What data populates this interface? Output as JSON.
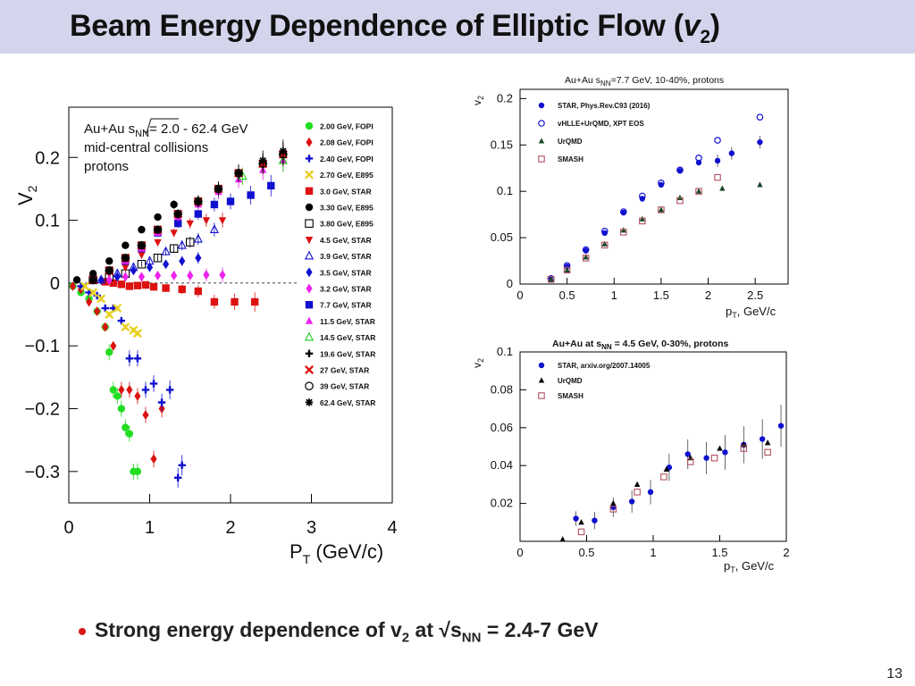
{
  "slide": {
    "title_main": "Beam Energy Dependence of Elliptic Flow",
    "title_sym": "v",
    "title_sub": "2",
    "bullet_pre": "Strong energy dependence of v",
    "bullet_sub1": "2",
    "bullet_mid": " at √s",
    "bullet_sub2": "NN",
    "bullet_post": " = 2.4-7 GeV",
    "page_number": "13"
  },
  "colors": {
    "title_band": "#d4d4ec",
    "bullet": "#d61818",
    "star_blue": "#1010d0",
    "green": "#22dd22",
    "red": "#dd1111"
  },
  "chart_data": [
    {
      "id": "left",
      "type": "scatter",
      "title": "",
      "annotation_lines": [
        "Au+Au √sNN = 2.0 - 62.4 GeV",
        "mid-central collisions",
        "protons"
      ],
      "annotation_1a": "Au+Au ",
      "annotation_1b": "s",
      "annotation_1c": "NN",
      "annotation_1d": "= 2.0 - 62.4 GeV",
      "annotation_2": "mid-central collisions",
      "annotation_3": "protons",
      "xlabel_main": "P",
      "xlabel_sub": "T",
      "xlabel_unit": " (GeV/c)",
      "ylabel_main": "V",
      "ylabel_sub": "2",
      "xlim": [
        0,
        4
      ],
      "ylim": [
        -0.35,
        0.28
      ],
      "xticks": [
        0,
        1,
        2,
        3,
        4
      ],
      "xtick_labels": [
        "0",
        "1",
        "2",
        "3",
        "4"
      ],
      "yticks": [
        0.2,
        0.1,
        0,
        -0.1,
        -0.2,
        -0.3
      ],
      "ytick_labels": [
        "0.2",
        "0.1",
        "0",
        "−0.1",
        "−0.2",
        "−0.3"
      ],
      "legend_position": "right",
      "series": [
        {
          "name": "2.00 GeV, FOPI",
          "color": "#22dd22",
          "marker": "circle",
          "x": [
            0.05,
            0.15,
            0.25,
            0.35,
            0.45,
            0.5,
            0.55,
            0.6,
            0.65,
            0.7,
            0.75,
            0.8,
            0.85
          ],
          "y": [
            -0.005,
            -0.015,
            -0.025,
            -0.045,
            -0.07,
            -0.11,
            -0.17,
            -0.18,
            -0.2,
            -0.23,
            -0.24,
            -0.3,
            -0.3
          ]
        },
        {
          "name": "2.08 GeV, FOPI",
          "color": "#dd1111",
          "marker": "diamond",
          "x": [
            0.05,
            0.15,
            0.25,
            0.35,
            0.45,
            0.55,
            0.65,
            0.75,
            0.85,
            0.95,
            1.05,
            1.15
          ],
          "y": [
            -0.005,
            -0.01,
            -0.03,
            -0.045,
            -0.07,
            -0.1,
            -0.17,
            -0.17,
            -0.18,
            -0.21,
            -0.28,
            -0.2
          ]
        },
        {
          "name": "2.40 GeV, FOPI",
          "color": "#1010d0",
          "marker": "plus",
          "x": [
            0.15,
            0.25,
            0.35,
            0.45,
            0.55,
            0.65,
            0.75,
            0.85,
            0.95,
            1.05,
            1.15,
            1.25,
            1.35,
            1.4
          ],
          "y": [
            -0.005,
            -0.015,
            -0.02,
            -0.04,
            -0.04,
            -0.06,
            -0.12,
            -0.12,
            -0.17,
            -0.16,
            -0.19,
            -0.17,
            -0.31,
            -0.29
          ]
        },
        {
          "name": "2.70 GeV, E895",
          "color": "#e8d020",
          "marker": "cross",
          "x": [
            0.2,
            0.3,
            0.4,
            0.5,
            0.6,
            0.7,
            0.8,
            0.85
          ],
          "y": [
            -0.005,
            -0.015,
            -0.025,
            -0.05,
            -0.04,
            -0.07,
            -0.075,
            -0.08
          ]
        },
        {
          "name": "3.0 GeV, STAR",
          "color": "#dd1111",
          "marker": "square",
          "x": [
            0.45,
            0.55,
            0.65,
            0.75,
            0.85,
            0.95,
            1.05,
            1.2,
            1.4,
            1.6,
            1.8,
            2.05,
            2.3
          ],
          "y": [
            0.002,
            0.0,
            -0.002,
            -0.005,
            -0.004,
            -0.003,
            -0.006,
            -0.008,
            -0.01,
            -0.013,
            -0.03,
            -0.03,
            -0.03
          ]
        },
        {
          "name": "3.30 GeV, E895",
          "color": "#000000",
          "marker": "circle",
          "x": [
            0.1,
            0.3,
            0.5,
            0.7,
            0.9,
            1.1,
            1.3
          ],
          "y": [
            0.005,
            0.015,
            0.035,
            0.06,
            0.085,
            0.105,
            0.125
          ]
        },
        {
          "name": "3.80 GeV, E895",
          "color": "#000000",
          "marker": "opensquare",
          "x": [
            0.3,
            0.5,
            0.7,
            0.9,
            1.1,
            1.3,
            1.5
          ],
          "y": [
            0.005,
            0.01,
            0.015,
            0.03,
            0.04,
            0.055,
            0.065
          ]
        },
        {
          "name": "4.5 GeV, STAR",
          "color": "#dd1111",
          "marker": "triangle-down",
          "x": [
            0.5,
            0.7,
            0.9,
            1.1,
            1.3,
            1.5,
            1.7,
            1.9
          ],
          "y": [
            0.015,
            0.025,
            0.045,
            0.065,
            0.08,
            0.095,
            0.1,
            0.1
          ]
        },
        {
          "name": "3.9 GeV, STAR",
          "color": "#1010d0",
          "marker": "opentriangle",
          "x": [
            0.4,
            0.6,
            0.8,
            1.0,
            1.2,
            1.4,
            1.6,
            1.8
          ],
          "y": [
            0.005,
            0.015,
            0.025,
            0.035,
            0.05,
            0.06,
            0.07,
            0.085
          ]
        },
        {
          "name": "3.5 GeV, STAR",
          "color": "#1010d0",
          "marker": "diamond",
          "x": [
            0.4,
            0.6,
            0.8,
            1.0,
            1.2,
            1.4,
            1.6
          ],
          "y": [
            0.005,
            0.01,
            0.02,
            0.025,
            0.03,
            0.035,
            0.04
          ]
        },
        {
          "name": "3.2 GeV, STAR",
          "color": "#ee22ee",
          "marker": "diamond",
          "x": [
            0.3,
            0.5,
            0.7,
            0.9,
            1.1,
            1.3,
            1.5,
            1.7,
            1.9
          ],
          "y": [
            0.005,
            0.005,
            0.01,
            0.01,
            0.012,
            0.012,
            0.012,
            0.013,
            0.013
          ]
        },
        {
          "name": "7.7 GeV, STAR",
          "color": "#1010d0",
          "marker": "square",
          "x": [
            0.3,
            0.5,
            0.7,
            0.9,
            1.1,
            1.35,
            1.6,
            1.8,
            2.0,
            2.25,
            2.5
          ],
          "y": [
            0.005,
            0.02,
            0.035,
            0.055,
            0.08,
            0.095,
            0.11,
            0.125,
            0.13,
            0.14,
            0.155
          ]
        },
        {
          "name": "11.5 GeV, STAR",
          "color": "#ee22ee",
          "marker": "triangle",
          "x": [
            0.3,
            0.5,
            0.7,
            0.9,
            1.1,
            1.35,
            1.6,
            1.85,
            2.1,
            2.4,
            2.65
          ],
          "y": [
            0.005,
            0.02,
            0.035,
            0.055,
            0.08,
            0.105,
            0.125,
            0.145,
            0.165,
            0.18,
            0.195
          ]
        },
        {
          "name": "14.5 GeV, STAR",
          "color": "#22cc22",
          "marker": "opentriangle",
          "x": [
            1.6,
            1.85,
            2.15,
            2.4,
            2.65
          ],
          "y": [
            0.13,
            0.15,
            0.17,
            0.19,
            0.195
          ]
        },
        {
          "name": "19.6 GeV, STAR",
          "color": "#000000",
          "marker": "plus",
          "x": [
            0.3,
            0.5,
            0.7,
            0.9,
            1.1,
            1.35,
            1.6,
            1.85,
            2.1,
            2.4,
            2.65
          ],
          "y": [
            0.005,
            0.02,
            0.04,
            0.06,
            0.085,
            0.11,
            0.13,
            0.15,
            0.175,
            0.19,
            0.205
          ]
        },
        {
          "name": "27 GeV, STAR",
          "color": "#dd1111",
          "marker": "cross",
          "x": [
            0.3,
            0.5,
            0.7,
            0.9,
            1.1,
            1.35,
            1.6,
            1.85,
            2.1,
            2.4,
            2.65
          ],
          "y": [
            0.005,
            0.02,
            0.04,
            0.06,
            0.085,
            0.11,
            0.13,
            0.15,
            0.175,
            0.19,
            0.205
          ]
        },
        {
          "name": "39 GeV, STAR",
          "color": "#000000",
          "marker": "opencircle",
          "x": [
            0.3,
            0.5,
            0.7,
            0.9,
            1.1,
            1.35,
            1.6,
            1.85,
            2.1,
            2.4,
            2.65
          ],
          "y": [
            0.005,
            0.02,
            0.04,
            0.06,
            0.085,
            0.11,
            0.13,
            0.15,
            0.175,
            0.19,
            0.205
          ]
        },
        {
          "name": "62.4 GeV, STAR",
          "color": "#000000",
          "marker": "star",
          "x": [
            0.3,
            0.5,
            0.7,
            0.9,
            1.1,
            1.35,
            1.6,
            1.85,
            2.1,
            2.4,
            2.65
          ],
          "y": [
            0.005,
            0.02,
            0.04,
            0.06,
            0.085,
            0.11,
            0.13,
            0.15,
            0.175,
            0.195,
            0.21
          ]
        }
      ]
    },
    {
      "id": "top-right",
      "type": "scatter",
      "title": "Au+Au √sNN=7.7 GeV, 10-40%, protons",
      "title_a": "Au+Au ",
      "title_b": "s",
      "title_c": "NN",
      "title_d": "=7.7 GeV, 10-40%, protons",
      "xlabel_main": "p",
      "xlabel_sub": "T",
      "xlabel_unit": ", GeV/c",
      "ylabel_main": "v",
      "ylabel_sub": "2",
      "xlim": [
        0,
        2.85
      ],
      "ylim": [
        0,
        0.21
      ],
      "xticks": [
        0,
        0.5,
        1,
        1.5,
        2,
        2.5
      ],
      "xtick_labels": [
        "0",
        "0.5",
        "1",
        "1.5",
        "2",
        "2.5"
      ],
      "yticks": [
        0,
        0.05,
        0.1,
        0.15,
        0.2
      ],
      "ytick_labels": [
        "0",
        "0.05",
        "0.1",
        "0.15",
        "0.2"
      ],
      "legend_position": "top-left",
      "series": [
        {
          "name": "STAR, Phys.Rev.C93 (2016)",
          "color": "#1010d0",
          "marker": "circle",
          "x": [
            0.32,
            0.5,
            0.7,
            0.9,
            1.1,
            1.3,
            1.5,
            1.7,
            1.9,
            2.1,
            2.25,
            2.55
          ],
          "y": [
            0.006,
            0.019,
            0.036,
            0.055,
            0.077,
            0.092,
            0.107,
            0.122,
            0.131,
            0.133,
            0.141,
            0.153
          ]
        },
        {
          "name": "vHLLE+UrQMD, XPT EOS",
          "color": "#1010d0",
          "marker": "opencircle",
          "x": [
            0.33,
            0.5,
            0.7,
            0.9,
            1.1,
            1.3,
            1.5,
            1.7,
            1.9,
            2.1,
            2.55
          ],
          "y": [
            0.006,
            0.02,
            0.037,
            0.057,
            0.078,
            0.095,
            0.109,
            0.123,
            0.136,
            0.155,
            0.18
          ]
        },
        {
          "name": "UrQMD",
          "color": "#1a4a2a",
          "marker": "triangle",
          "x": [
            0.33,
            0.5,
            0.7,
            0.9,
            1.1,
            1.3,
            1.5,
            1.7,
            1.9,
            2.15,
            2.55
          ],
          "y": [
            0.005,
            0.015,
            0.029,
            0.043,
            0.058,
            0.07,
            0.08,
            0.093,
            0.1,
            0.103,
            0.107
          ]
        },
        {
          "name": "SMASH",
          "color": "#b05060",
          "marker": "opensquare",
          "x": [
            0.33,
            0.5,
            0.7,
            0.9,
            1.1,
            1.3,
            1.5,
            1.7,
            1.9,
            2.1
          ],
          "y": [
            0.005,
            0.015,
            0.028,
            0.042,
            0.056,
            0.068,
            0.08,
            0.09,
            0.1,
            0.115
          ]
        }
      ]
    },
    {
      "id": "bottom-right",
      "type": "scatter",
      "title": "Au+Au at √sNN = 4.5 GeV, 0-30%, protons",
      "title_a": "Au+Au at ",
      "title_b": "s",
      "title_c": "NN",
      "title_d": " = 4.5 GeV, 0-30%, protons",
      "xlabel_main": "p",
      "xlabel_sub": "T",
      "xlabel_unit": ", GeV/c",
      "ylabel_main": "v",
      "ylabel_sub": "2",
      "xlim": [
        0,
        2.0
      ],
      "ylim": [
        0,
        0.1
      ],
      "xticks": [
        0,
        0.5,
        1,
        1.5,
        2
      ],
      "xtick_labels": [
        "0",
        "0.5",
        "1",
        "1.5",
        "2"
      ],
      "yticks": [
        0.02,
        0.04,
        0.06,
        0.08,
        0.1
      ],
      "ytick_labels": [
        "0.02",
        "0.04",
        "0.06",
        "0.08",
        "0.1"
      ],
      "legend_position": "top-left",
      "series": [
        {
          "name": "STAR, arxiv.org/2007.14005",
          "color": "#1010d0",
          "marker": "circle",
          "x": [
            0.42,
            0.56,
            0.7,
            0.84,
            0.98,
            1.12,
            1.26,
            1.4,
            1.54,
            1.68,
            1.82,
            1.96
          ],
          "y": [
            0.012,
            0.011,
            0.018,
            0.021,
            0.026,
            0.039,
            0.046,
            0.044,
            0.047,
            0.051,
            0.054,
            0.061
          ]
        },
        {
          "name": "UrQMD",
          "color": "#000000",
          "marker": "triangle",
          "x": [
            0.32,
            0.46,
            0.7,
            0.88,
            1.1,
            1.28,
            1.5,
            1.68,
            1.86
          ],
          "y": [
            0.001,
            0.01,
            0.02,
            0.03,
            0.038,
            0.044,
            0.049,
            0.051,
            0.052
          ]
        },
        {
          "name": "SMASH",
          "color": "#b05060",
          "marker": "opensquare",
          "x": [
            0.46,
            0.7,
            0.88,
            1.08,
            1.28,
            1.46,
            1.68,
            1.86
          ],
          "y": [
            0.005,
            0.017,
            0.026,
            0.034,
            0.042,
            0.044,
            0.049,
            0.047
          ]
        }
      ]
    }
  ]
}
